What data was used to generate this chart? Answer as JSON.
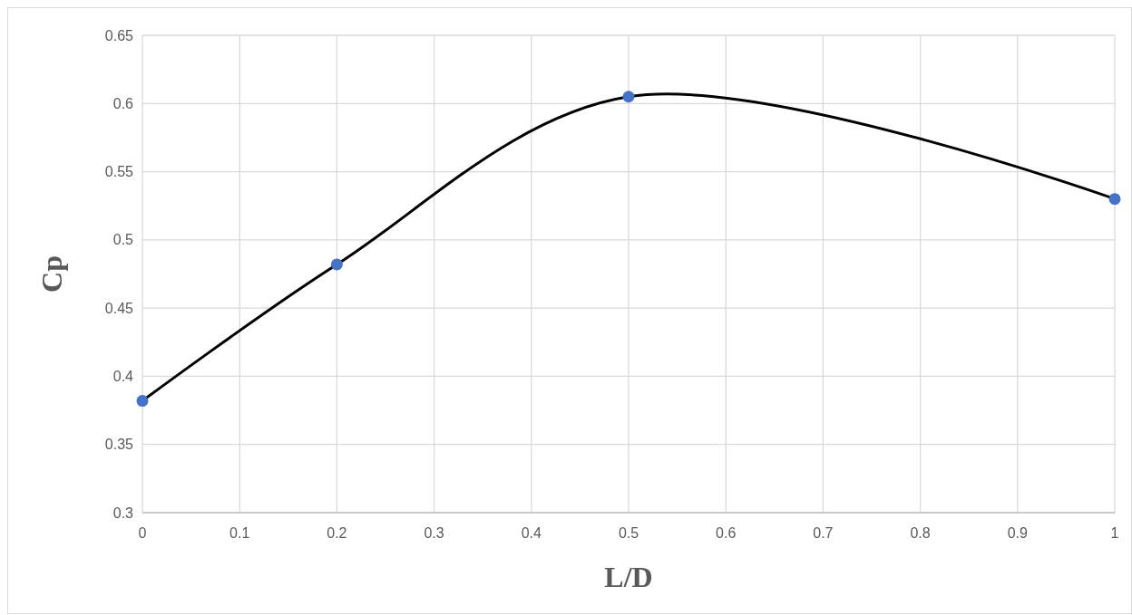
{
  "chart_data": {
    "type": "line",
    "xlabel": "L/D",
    "ylabel": "Cp",
    "xlim": [
      0,
      1
    ],
    "xticks": [
      0,
      0.1,
      0.2,
      0.3,
      0.4,
      0.5,
      0.6,
      0.7,
      0.8,
      0.9,
      1
    ],
    "ylim": [
      0.3,
      0.65
    ],
    "yticks": [
      0.3,
      0.35,
      0.4,
      0.45,
      0.5,
      0.55,
      0.6,
      0.65
    ],
    "grid": true,
    "series": [
      {
        "color": "#000000",
        "marker": "none",
        "x": [
          0,
          0.2,
          0.5,
          1
        ],
        "values": [
          0.382,
          0.482,
          0.605,
          0.53
        ]
      },
      {
        "type": "scatter",
        "color": "#4472c4",
        "marker": "circle",
        "x": [
          0,
          0.2,
          0.5,
          1
        ],
        "values": [
          0.382,
          0.482,
          0.605,
          0.53
        ]
      }
    ]
  }
}
